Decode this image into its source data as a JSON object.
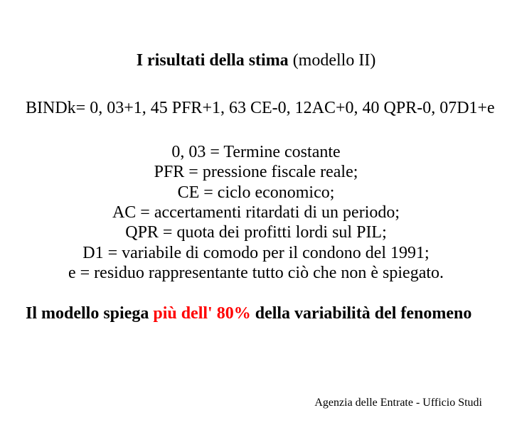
{
  "title_bold": "I risultati della stima",
  "title_rest": " (modello II)",
  "equation": "BINDk= 0, 03+1, 45 PFR+1, 63 CE-0, 12AC+0, 40 QPR-0, 07D1+e",
  "defs": {
    "d1": "0, 03 = Termine costante",
    "d2": "PFR = pressione fiscale reale;",
    "d3": "CE = ciclo economico;",
    "d4": "AC = accertamenti ritardati di un periodo;",
    "d5": "QPR = quota dei profitti lordi sul PIL;",
    "d6": "D1 = variabile di comodo per il condono del 1991;",
    "d7": "e = residuo rappresentante tutto ciò che non è spiegato."
  },
  "conclusion_pre": "Il modello spiega ",
  "conclusion_red": "più dell' 80%",
  "conclusion_post": " della variabilità del fenomeno",
  "footer": "Agenzia delle Entrate - Ufficio Studi",
  "colors": {
    "text": "#000000",
    "accent": "#ff0000",
    "background": "#ffffff"
  },
  "fonts": {
    "body_family": "Times New Roman",
    "title_size_pt": 24,
    "body_size_pt": 24,
    "footer_size_pt": 16
  }
}
